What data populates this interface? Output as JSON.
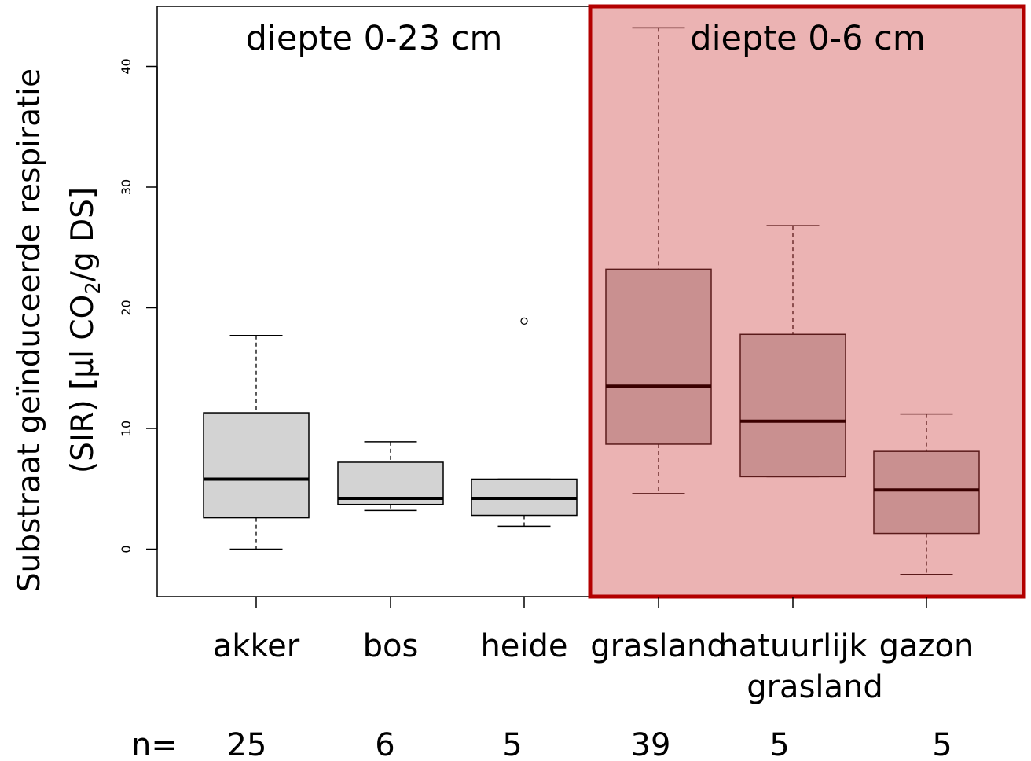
{
  "chart_data": {
    "type": "boxplot",
    "title": "",
    "xlabel": "",
    "ylabel_line1": "Substraat geïnduceerde respiratie",
    "ylabel_line2_pre": "(SIR) [µl CO",
    "ylabel_line2_sub": "2",
    "ylabel_line2_post": "/g DS]",
    "ylim": [
      -4,
      45
    ],
    "yticks": [
      0,
      10,
      20,
      30,
      40
    ],
    "n_prefix": "n=",
    "panels": [
      {
        "label": "diepte 0-23 cm",
        "highlight": false
      },
      {
        "label": "diepte 0-6 cm",
        "highlight": true,
        "fill": "#ebb3b3",
        "border": "#b30000"
      }
    ],
    "colors": {
      "box_fill_normal": "#d3d3d3",
      "box_fill_highlight": "#c99090",
      "box_stroke_highlight": "#5a1a1a",
      "median_highlight": "#3a0000"
    },
    "groups": [
      {
        "category": "akker",
        "category_line2": "",
        "n": "25",
        "panel": 0,
        "whisker_low": 0,
        "q1": 2.6,
        "median": 5.8,
        "q3": 11.3,
        "whisker_high": 17.7,
        "outliers": []
      },
      {
        "category": "bos",
        "category_line2": "",
        "n": "6",
        "panel": 0,
        "whisker_low": 3.2,
        "q1": 3.7,
        "median": 4.2,
        "q3": 7.2,
        "whisker_high": 8.9,
        "outliers": []
      },
      {
        "category": "heide",
        "category_line2": "",
        "n": "5",
        "panel": 0,
        "whisker_low": 1.9,
        "q1": 2.8,
        "median": 4.2,
        "q3": 5.8,
        "whisker_high": 5.8,
        "outliers": [
          18.9
        ]
      },
      {
        "category": "grasland",
        "category_line2": "",
        "n": "39",
        "panel": 1,
        "whisker_low": 4.6,
        "q1": 8.7,
        "median": 13.5,
        "q3": 23.2,
        "whisker_high": 43.2,
        "outliers": []
      },
      {
        "category": "natuurlijk",
        "category_line2": "grasland",
        "n": "5",
        "panel": 1,
        "whisker_low": 6.0,
        "q1": 6.0,
        "median": 10.6,
        "q3": 17.8,
        "whisker_high": 26.8,
        "outliers": []
      },
      {
        "category": "gazon",
        "category_line2": "",
        "n": "5",
        "panel": 1,
        "whisker_low": -2.1,
        "q1": 1.3,
        "median": 4.9,
        "q3": 8.1,
        "whisker_high": 11.2,
        "outliers": []
      }
    ]
  }
}
